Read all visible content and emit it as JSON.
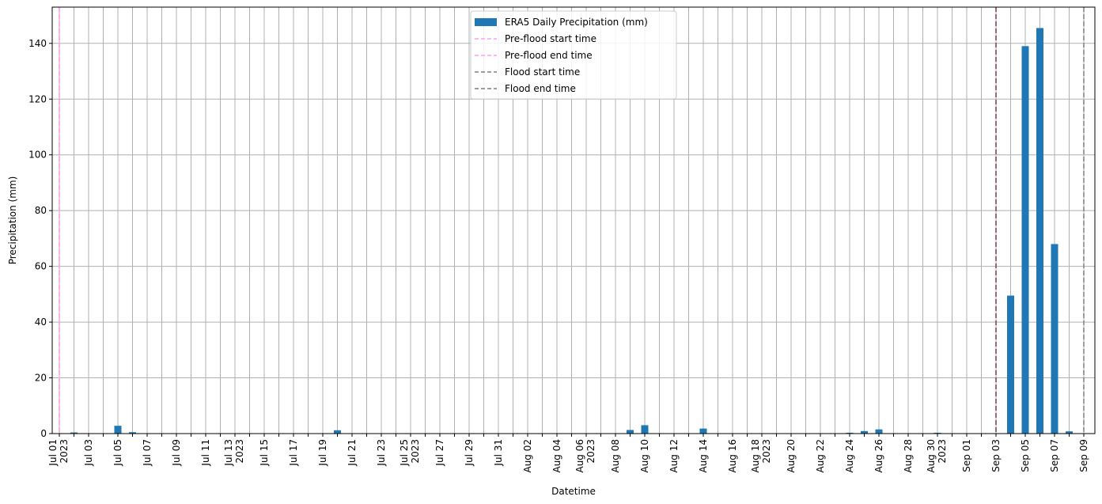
{
  "chart_data": {
    "type": "bar",
    "xlabel": "Datetime",
    "ylabel": "Precipitation (mm)",
    "ylim": [
      0,
      153
    ],
    "yticks": [
      0,
      20,
      40,
      60,
      80,
      100,
      120,
      140
    ],
    "grid": true,
    "legend_position": "top-center",
    "categories": [
      "2023-07-01",
      "2023-07-02",
      "2023-07-03",
      "2023-07-04",
      "2023-07-05",
      "2023-07-06",
      "2023-07-07",
      "2023-07-08",
      "2023-07-09",
      "2023-07-10",
      "2023-07-11",
      "2023-07-12",
      "2023-07-13",
      "2023-07-14",
      "2023-07-15",
      "2023-07-16",
      "2023-07-17",
      "2023-07-18",
      "2023-07-19",
      "2023-07-20",
      "2023-07-21",
      "2023-07-22",
      "2023-07-23",
      "2023-07-24",
      "2023-07-25",
      "2023-07-26",
      "2023-07-27",
      "2023-07-28",
      "2023-07-29",
      "2023-07-30",
      "2023-07-31",
      "2023-08-01",
      "2023-08-02",
      "2023-08-03",
      "2023-08-04",
      "2023-08-05",
      "2023-08-06",
      "2023-08-07",
      "2023-08-08",
      "2023-08-09",
      "2023-08-10",
      "2023-08-11",
      "2023-08-12",
      "2023-08-13",
      "2023-08-14",
      "2023-08-15",
      "2023-08-16",
      "2023-08-17",
      "2023-08-18",
      "2023-08-19",
      "2023-08-20",
      "2023-08-21",
      "2023-08-22",
      "2023-08-23",
      "2023-08-24",
      "2023-08-25",
      "2023-08-26",
      "2023-08-27",
      "2023-08-28",
      "2023-08-29",
      "2023-08-30",
      "2023-08-31",
      "2023-09-01",
      "2023-09-02",
      "2023-09-03",
      "2023-09-04",
      "2023-09-05",
      "2023-09-06",
      "2023-09-07",
      "2023-09-08",
      "2023-09-09"
    ],
    "tick_labels": [
      {
        "line1": "Jul 01",
        "line2": "2023"
      },
      {
        "line1": "",
        "line2": ""
      },
      {
        "line1": "Jul 03",
        "line2": ""
      },
      {
        "line1": "",
        "line2": ""
      },
      {
        "line1": "Jul 05",
        "line2": ""
      },
      {
        "line1": "",
        "line2": ""
      },
      {
        "line1": "Jul 07",
        "line2": ""
      },
      {
        "line1": "",
        "line2": ""
      },
      {
        "line1": "Jul 09",
        "line2": ""
      },
      {
        "line1": "",
        "line2": ""
      },
      {
        "line1": "Jul 11",
        "line2": ""
      },
      {
        "line1": "",
        "line2": ""
      },
      {
        "line1": "Jul 13",
        "line2": "2023"
      },
      {
        "line1": "",
        "line2": ""
      },
      {
        "line1": "Jul 15",
        "line2": ""
      },
      {
        "line1": "",
        "line2": ""
      },
      {
        "line1": "Jul 17",
        "line2": ""
      },
      {
        "line1": "",
        "line2": ""
      },
      {
        "line1": "Jul 19",
        "line2": ""
      },
      {
        "line1": "",
        "line2": ""
      },
      {
        "line1": "Jul 21",
        "line2": ""
      },
      {
        "line1": "",
        "line2": ""
      },
      {
        "line1": "Jul 23",
        "line2": ""
      },
      {
        "line1": "",
        "line2": ""
      },
      {
        "line1": "Jul 25",
        "line2": "2023"
      },
      {
        "line1": "",
        "line2": ""
      },
      {
        "line1": "Jul 27",
        "line2": ""
      },
      {
        "line1": "",
        "line2": ""
      },
      {
        "line1": "Jul 29",
        "line2": ""
      },
      {
        "line1": "",
        "line2": ""
      },
      {
        "line1": "Jul 31",
        "line2": ""
      },
      {
        "line1": "",
        "line2": ""
      },
      {
        "line1": "Aug 02",
        "line2": ""
      },
      {
        "line1": "",
        "line2": ""
      },
      {
        "line1": "Aug 04",
        "line2": ""
      },
      {
        "line1": "",
        "line2": ""
      },
      {
        "line1": "Aug 06",
        "line2": "2023"
      },
      {
        "line1": "",
        "line2": ""
      },
      {
        "line1": "Aug 08",
        "line2": ""
      },
      {
        "line1": "",
        "line2": ""
      },
      {
        "line1": "Aug 10",
        "line2": ""
      },
      {
        "line1": "",
        "line2": ""
      },
      {
        "line1": "Aug 12",
        "line2": ""
      },
      {
        "line1": "",
        "line2": ""
      },
      {
        "line1": "Aug 14",
        "line2": ""
      },
      {
        "line1": "",
        "line2": ""
      },
      {
        "line1": "Aug 16",
        "line2": ""
      },
      {
        "line1": "",
        "line2": ""
      },
      {
        "line1": "Aug 18",
        "line2": "2023"
      },
      {
        "line1": "",
        "line2": ""
      },
      {
        "line1": "Aug 20",
        "line2": ""
      },
      {
        "line1": "",
        "line2": ""
      },
      {
        "line1": "Aug 22",
        "line2": ""
      },
      {
        "line1": "",
        "line2": ""
      },
      {
        "line1": "Aug 24",
        "line2": ""
      },
      {
        "line1": "",
        "line2": ""
      },
      {
        "line1": "Aug 26",
        "line2": ""
      },
      {
        "line1": "",
        "line2": ""
      },
      {
        "line1": "Aug 28",
        "line2": ""
      },
      {
        "line1": "",
        "line2": ""
      },
      {
        "line1": "Aug 30",
        "line2": "2023"
      },
      {
        "line1": "",
        "line2": ""
      },
      {
        "line1": "Sep 01",
        "line2": ""
      },
      {
        "line1": "",
        "line2": ""
      },
      {
        "line1": "Sep 03",
        "line2": ""
      },
      {
        "line1": "",
        "line2": ""
      },
      {
        "line1": "Sep 05",
        "line2": ""
      },
      {
        "line1": "",
        "line2": ""
      },
      {
        "line1": "Sep 07",
        "line2": ""
      },
      {
        "line1": "",
        "line2": ""
      },
      {
        "line1": "Sep 09",
        "line2": ""
      }
    ],
    "series": [
      {
        "name": "ERA5 Daily Precipitation (mm)",
        "color": "#1f77b4",
        "values": [
          0,
          0.4,
          0,
          0,
          2.8,
          0.5,
          0,
          0,
          0,
          0,
          0,
          0,
          0,
          0,
          0,
          0,
          0,
          0,
          0,
          1.2,
          0,
          0,
          0,
          0,
          0,
          0,
          0,
          0,
          0,
          0,
          0,
          0,
          0,
          0,
          0,
          0,
          0,
          0,
          0,
          1.3,
          3.0,
          0,
          0,
          0,
          1.8,
          0,
          0,
          0,
          0,
          0,
          0,
          0,
          0,
          0,
          0.3,
          0.9,
          1.5,
          0,
          0,
          0,
          0.3,
          0,
          0,
          0,
          0,
          49.5,
          139,
          145.5,
          68,
          0.8,
          0
        ]
      }
    ],
    "vlines": [
      {
        "name": "Pre-flood start time",
        "date": "2023-07-01",
        "color": "#ff9ef0",
        "style": "dashed"
      },
      {
        "name": "Pre-flood end time",
        "date": "2023-07-01",
        "color": "#ff9ef0",
        "style": "dashed"
      },
      {
        "name": "Flood start time",
        "date": "2023-09-03",
        "color": "#7f7f7f",
        "style": "dashed"
      },
      {
        "name": "Flood end time",
        "date": "2023-09-09",
        "color": "#7f7f7f",
        "style": "dashed"
      }
    ],
    "colors": {
      "bar": "#1f77b4",
      "grid": "#b0b0b0",
      "preflood": "#ff9ef0",
      "flood": "#7f7f7f",
      "flood_start_overlay": "#8b4a6f"
    }
  }
}
